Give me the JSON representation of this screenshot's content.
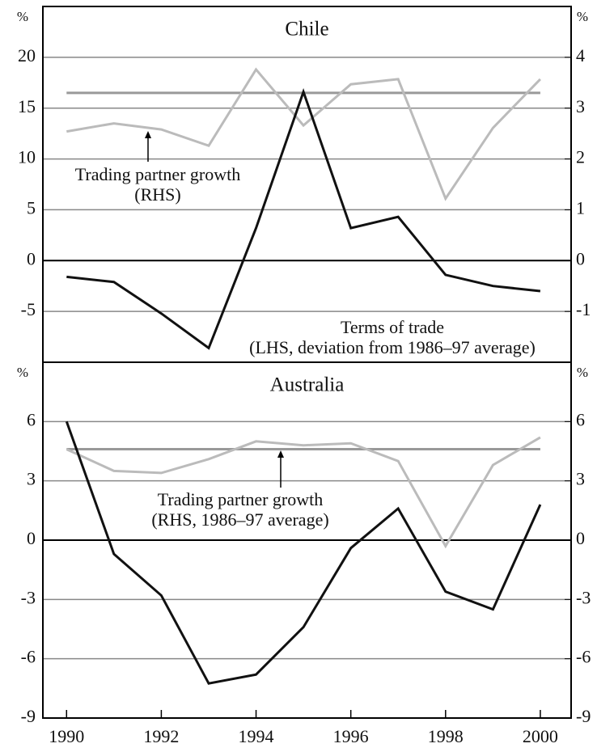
{
  "chart_data": [
    {
      "type": "line",
      "title": "Chile",
      "y_unit": "%",
      "y2_unit": "%",
      "x": [
        1990,
        1991,
        1992,
        1993,
        1994,
        1995,
        1996,
        1997,
        1998,
        1999,
        2000
      ],
      "xlim": [
        1989.5,
        2000.65
      ],
      "ylim": [
        -10,
        25
      ],
      "yticks": [
        -5,
        0,
        5,
        10,
        15,
        20
      ],
      "y2lim": [
        -2,
        5
      ],
      "y2ticks": [
        -1,
        0,
        1,
        2,
        3,
        4
      ],
      "grid": true,
      "series": [
        {
          "color": "#bbbbbb",
          "axis": "y2",
          "values": [
            2.54,
            2.7,
            2.58,
            2.26,
            3.76,
            2.66,
            3.47,
            3.57,
            1.22,
            2.61,
            3.57
          ]
        },
        {
          "color": "#111111",
          "axis": "y",
          "values": [
            -1.6,
            -2.1,
            -5.2,
            -8.6,
            3.2,
            16.6,
            3.2,
            4.3,
            -1.4,
            -2.5,
            -3.0
          ]
        }
      ],
      "reference_line": {
        "value": 3.3,
        "axis": "y2",
        "color": "#999999"
      },
      "annotations": [
        [
          "Trading partner growth",
          "(RHS)"
        ],
        [
          "Terms of trade",
          "(LHS, deviation from 1986–97 average)"
        ]
      ]
    },
    {
      "type": "line",
      "title": "Australia",
      "y_unit": "%",
      "y2_unit": "%",
      "x": [
        1990,
        1991,
        1992,
        1993,
        1994,
        1995,
        1996,
        1997,
        1998,
        1999,
        2000
      ],
      "xlim": [
        1989.5,
        2000.65
      ],
      "xticks": [
        1990,
        1992,
        1994,
        1996,
        1998,
        2000
      ],
      "ylim": [
        -9,
        9
      ],
      "yticks": [
        -9,
        -6,
        -3,
        0,
        3,
        6
      ],
      "y2lim": [
        -9,
        9
      ],
      "y2ticks": [
        -9,
        -6,
        -3,
        0,
        3,
        6
      ],
      "grid": true,
      "series": [
        {
          "color": "#bbbbbb",
          "axis": "y2",
          "values": [
            4.6,
            3.5,
            3.4,
            4.1,
            5.0,
            4.8,
            4.9,
            4.0,
            -0.3,
            3.8,
            5.2
          ]
        },
        {
          "color": "#111111",
          "axis": "y",
          "values": [
            6.0,
            -0.7,
            -2.8,
            -7.25,
            -6.8,
            -4.4,
            -0.4,
            1.6,
            -2.6,
            -3.5,
            1.8
          ]
        }
      ],
      "reference_line": {
        "value": 4.6,
        "axis": "y2",
        "color": "#999999"
      },
      "annotations": [
        [
          "Trading partner growth",
          "(RHS, 1986–97 average)"
        ]
      ]
    }
  ]
}
